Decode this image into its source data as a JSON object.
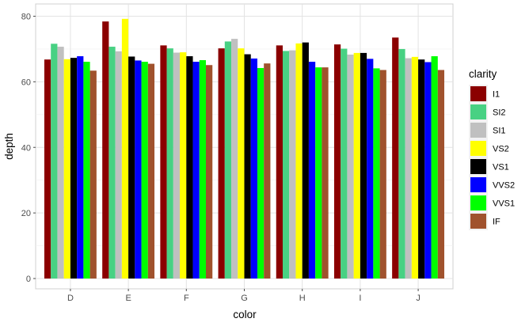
{
  "chart_data": {
    "type": "bar",
    "xlabel": "color",
    "ylabel": "depth",
    "ylim": [
      0,
      82
    ],
    "yticks": [
      0,
      20,
      40,
      60,
      80
    ],
    "grid": true,
    "legend_title": "clarity",
    "legend_position": "right",
    "categories": [
      "D",
      "E",
      "F",
      "G",
      "H",
      "I",
      "J"
    ],
    "series": [
      {
        "name": "I1",
        "color": "#8B0000",
        "values": [
          66.8,
          78.4,
          71.1,
          70.2,
          71.1,
          71.4,
          73.5
        ]
      },
      {
        "name": "SI2",
        "color": "#48D183",
        "values": [
          71.6,
          70.7,
          70.2,
          72.3,
          69.4,
          70.1,
          70.0
        ]
      },
      {
        "name": "SI1",
        "color": "#C0C0C0",
        "values": [
          70.7,
          69.3,
          68.9,
          73.1,
          69.6,
          68.3,
          67.2
        ]
      },
      {
        "name": "VS2",
        "color": "#FFFF00",
        "values": [
          66.9,
          79.2,
          69.0,
          70.2,
          71.7,
          68.8,
          67.6
        ]
      },
      {
        "name": "VS1",
        "color": "#000000",
        "values": [
          67.3,
          67.7,
          67.8,
          68.4,
          72.0,
          68.8,
          66.8
        ]
      },
      {
        "name": "VVS2",
        "color": "#0000FF",
        "values": [
          67.8,
          66.5,
          66.1,
          67.1,
          66.1,
          67.0,
          66.0
        ]
      },
      {
        "name": "VVS1",
        "color": "#00FF00",
        "values": [
          66.1,
          66.1,
          66.6,
          64.2,
          64.4,
          64.1,
          67.8
        ]
      },
      {
        "name": "IF",
        "color": "#A0522D",
        "values": [
          63.4,
          65.5,
          65.1,
          65.6,
          64.4,
          63.6,
          63.6
        ]
      }
    ]
  }
}
